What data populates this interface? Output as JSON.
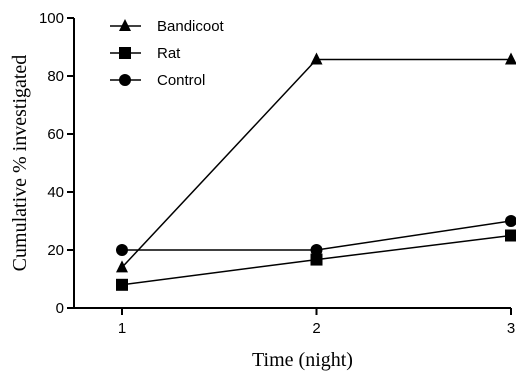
{
  "chart_data": {
    "type": "line",
    "title": "",
    "xlabel": "Time (night)",
    "ylabel": "Cumulative % investigated",
    "x": [
      1,
      2,
      3
    ],
    "x_ticks": [
      "1",
      "2",
      "3"
    ],
    "xlim": [
      0.75,
      3
    ],
    "ylim": [
      0,
      100
    ],
    "y_ticks": [
      "0",
      "20",
      "40",
      "60",
      "80",
      "100"
    ],
    "grid": false,
    "legend_position": "top-left",
    "series": [
      {
        "name": "Bandicoot",
        "marker": "triangle",
        "values": [
          14,
          85.7,
          85.7
        ]
      },
      {
        "name": "Rat",
        "marker": "square",
        "values": [
          8,
          16.7,
          25
        ]
      },
      {
        "name": "Control",
        "marker": "circle",
        "values": [
          20,
          20,
          30
        ]
      }
    ]
  }
}
